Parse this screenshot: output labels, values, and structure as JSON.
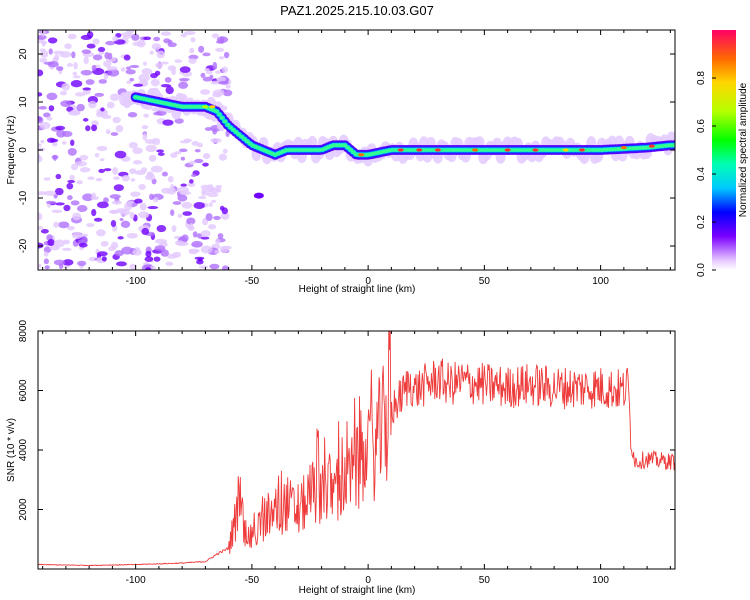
{
  "title": "PAZ1.2025.215.10.03.G07",
  "colorbar": {
    "label": "Normalized spectral amplitude",
    "ticks": [
      "0.0",
      "0.2",
      "0.4",
      "0.6",
      "0.8"
    ],
    "tick_values": [
      0.0,
      0.2,
      0.4,
      0.6,
      0.8
    ],
    "range": [
      0,
      1
    ]
  },
  "chart_data": [
    {
      "type": "heatmap",
      "title": "",
      "xlabel": "Height of straight line (km)",
      "ylabel": "Frequency (Hz)",
      "xlim": [
        -142,
        132
      ],
      "ylim": [
        -25,
        25
      ],
      "xticks": [
        -100,
        -50,
        0,
        50,
        100
      ],
      "xtick_labels": [
        "-100",
        "-50",
        "0",
        "50",
        "100"
      ],
      "yticks": [
        20,
        10,
        0,
        -10,
        -20
      ],
      "ytick_labels": [
        "20",
        "10",
        "0",
        "-10",
        "-20"
      ],
      "ridge": {
        "x": [
          -100,
          -90,
          -80,
          -75,
          -70,
          -65,
          -60,
          -55,
          -50,
          -45,
          -40,
          -35,
          -30,
          -25,
          -20,
          -15,
          -10,
          -5,
          0,
          10,
          20,
          40,
          60,
          80,
          100,
          120,
          130
        ],
        "y": [
          11,
          10,
          9,
          9,
          9,
          8,
          5,
          3,
          1,
          0,
          -1,
          0,
          0,
          0,
          0,
          1,
          1,
          -1,
          -1,
          0,
          0,
          0,
          0,
          0,
          0,
          0.5,
          1
        ]
      }
    },
    {
      "type": "line",
      "title": "",
      "xlabel": "Height of straight line (km)",
      "ylabel": "SNR (10 * v/v)",
      "xlim": [
        -142,
        132
      ],
      "ylim": [
        0,
        8000
      ],
      "xticks": [
        -100,
        -50,
        0,
        50,
        100
      ],
      "xtick_labels": [
        "-100",
        "-50",
        "0",
        "50",
        "100"
      ],
      "yticks": [
        2000,
        4000,
        6000,
        8000
      ],
      "ytick_labels": [
        "2000",
        "4000",
        "6000",
        "8000"
      ],
      "series": [
        {
          "color": "#ee3b3b",
          "x": [
            -142,
            -120,
            -100,
            -80,
            -70,
            -65,
            -60,
            -57,
            -55,
            -53,
            -50,
            -45,
            -40,
            -35,
            -30,
            -25,
            -20,
            -15,
            -10,
            -5,
            0,
            5,
            10,
            15,
            18,
            20,
            25,
            30,
            35,
            40,
            50,
            60,
            70,
            80,
            90,
            100,
            105,
            110,
            112,
            113,
            115,
            120,
            125,
            132
          ],
          "y": [
            150,
            120,
            150,
            200,
            250,
            500,
            700,
            1700,
            2300,
            1200,
            1000,
            1600,
            1900,
            2200,
            1900,
            2500,
            2800,
            2600,
            3000,
            3300,
            3700,
            4500,
            5300,
            5900,
            6300,
            6000,
            6200,
            6400,
            6200,
            6300,
            6200,
            6100,
            6200,
            6100,
            6100,
            6100,
            6050,
            6000,
            6200,
            4300,
            3600,
            3700,
            3650,
            3600
          ]
        }
      ]
    }
  ]
}
